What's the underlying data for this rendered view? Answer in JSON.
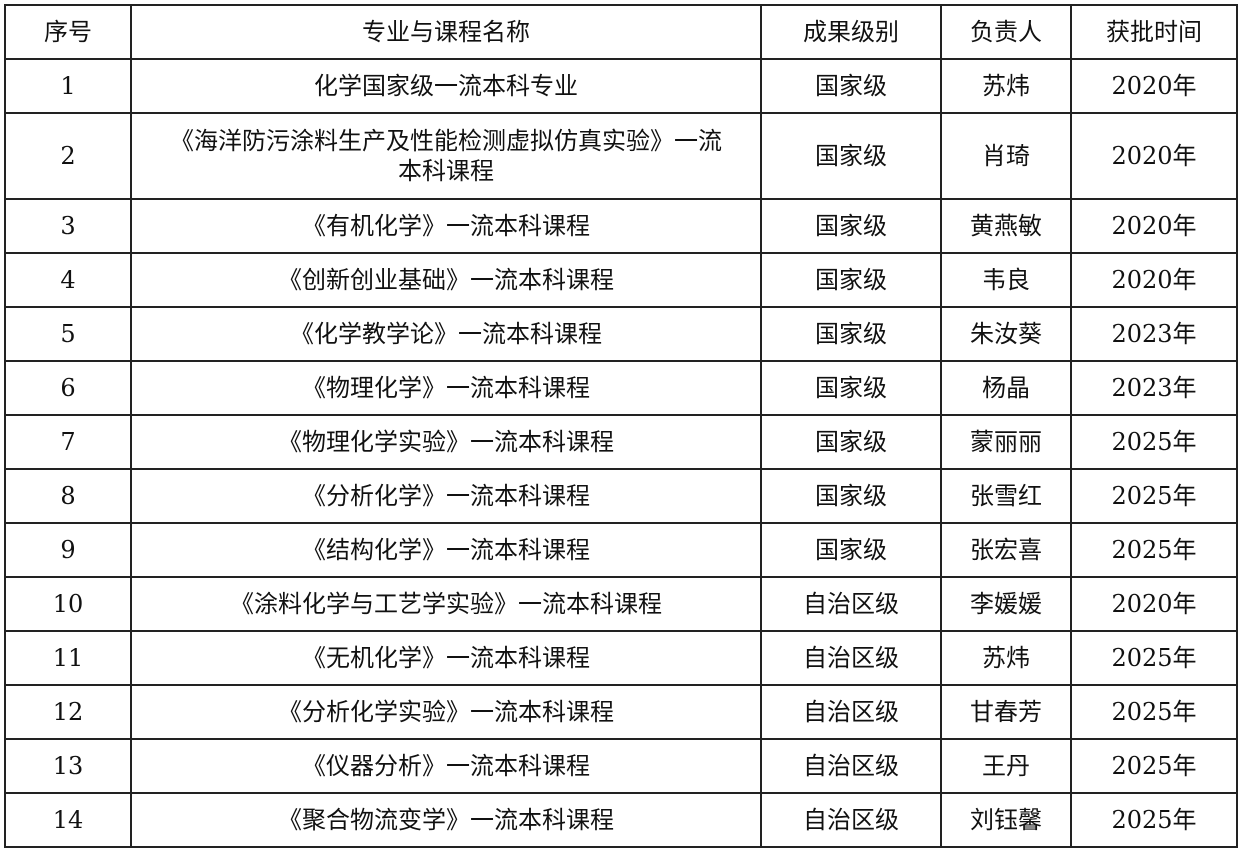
{
  "headers": [
    "序号",
    "专业与课程名称",
    "成果级别",
    "负责人",
    "获批时间"
  ],
  "rows": [
    {
      "no": "1",
      "name": "化学国家级一流本科专业",
      "level": "国家级",
      "leader": "苏炜",
      "year": "2020年"
    },
    {
      "no": "2",
      "name": "《海洋防污涂料生产及性能检测虚拟仿真实验》一流本科课程",
      "level": "国家级",
      "leader": "肖琦",
      "year": "2020年"
    },
    {
      "no": "3",
      "name": "《有机化学》一流本科课程",
      "level": "国家级",
      "leader": "黄燕敏",
      "year": "2020年"
    },
    {
      "no": "4",
      "name": "《创新创业基础》一流本科课程",
      "level": "国家级",
      "leader": "韦良",
      "year": "2020年"
    },
    {
      "no": "5",
      "name": "《化学教学论》一流本科课程",
      "level": "国家级",
      "leader": "朱汝葵",
      "year": "2023年"
    },
    {
      "no": "6",
      "name": "《物理化学》一流本科课程",
      "level": "国家级",
      "leader": "杨晶",
      "year": "2023年"
    },
    {
      "no": "7",
      "name": "《物理化学实验》一流本科课程",
      "level": "国家级",
      "leader": "蒙丽丽",
      "year": "2025年"
    },
    {
      "no": "8",
      "name": "《分析化学》一流本科课程",
      "level": "国家级",
      "leader": "张雪红",
      "year": "2025年"
    },
    {
      "no": "9",
      "name": "《结构化学》一流本科课程",
      "level": "国家级",
      "leader": "张宏喜",
      "year": "2025年"
    },
    {
      "no": "10",
      "name": "《涂料化学与工艺学实验》一流本科课程",
      "level": "自治区级",
      "leader": "李媛媛",
      "year": "2020年"
    },
    {
      "no": "11",
      "name": "《无机化学》一流本科课程",
      "level": "自治区级",
      "leader": "苏炜",
      "year": "2025年"
    },
    {
      "no": "12",
      "name": "《分析化学实验》一流本科课程",
      "level": "自治区级",
      "leader": "甘春芳",
      "year": "2025年"
    },
    {
      "no": "13",
      "name": "《仪器分析》一流本科课程",
      "level": "自治区级",
      "leader": "王丹",
      "year": "2025年"
    },
    {
      "no": "14",
      "name": "《聚合物流变学》一流本科课程",
      "level": "自治区级",
      "leader": "刘钰馨",
      "year": "2025年"
    }
  ]
}
